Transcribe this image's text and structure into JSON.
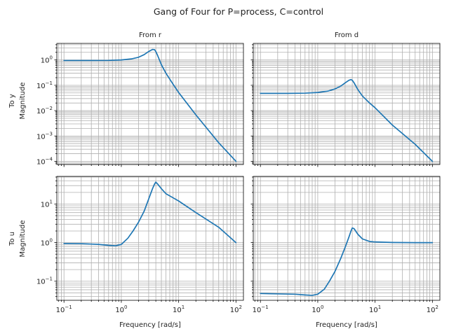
{
  "chart_data": {
    "type": "line",
    "title": "Gang of Four for P=process, C=control",
    "scale": {
      "x": "log",
      "y": "log"
    },
    "grid": {
      "major": true,
      "minor": true
    },
    "line_color": "#1f77b4",
    "col_titles": [
      "From r",
      "From d"
    ],
    "row_labels": [
      [
        "To y",
        "Magnitude"
      ],
      [
        "To u",
        "Magnitude"
      ]
    ],
    "xlabel": "Frequency [rad/s]",
    "xlim": [
      0.075,
      135
    ],
    "x_ticks": [
      {
        "base": "10",
        "exp": "−1",
        "value": 0.1
      },
      {
        "base": "10",
        "exp": "0",
        "value": 1
      },
      {
        "base": "10",
        "exp": "1",
        "value": 10
      },
      {
        "base": "10",
        "exp": "2",
        "value": 100
      }
    ],
    "panels": [
      {
        "id": "y-from-r",
        "ylim": [
          7.5e-05,
          4.5
        ],
        "y_ticks": [
          {
            "base": "10",
            "exp": "−4",
            "value": 0.0001
          },
          {
            "base": "10",
            "exp": "−3",
            "value": 0.001
          },
          {
            "base": "10",
            "exp": "−2",
            "value": 0.01
          },
          {
            "base": "10",
            "exp": "−1",
            "value": 0.1
          },
          {
            "base": "10",
            "exp": "0",
            "value": 1
          }
        ],
        "x": [
          0.1,
          0.3,
          0.6,
          1.0,
          1.5,
          2.0,
          2.5,
          3.0,
          3.5,
          3.8,
          4.0,
          4.3,
          5.0,
          6.0,
          8.0,
          10,
          20,
          50,
          100
        ],
        "y": [
          0.95,
          0.95,
          0.96,
          1.0,
          1.1,
          1.28,
          1.62,
          2.15,
          2.6,
          2.55,
          2.15,
          1.5,
          0.65,
          0.3,
          0.11,
          0.052,
          0.0068,
          0.00054,
          0.0001
        ]
      },
      {
        "id": "y-from-d",
        "ylim": [
          7.5e-05,
          4.5
        ],
        "y_ticks": [],
        "x": [
          0.1,
          0.3,
          0.6,
          1.0,
          1.5,
          2.0,
          2.5,
          3.0,
          3.5,
          3.8,
          4.0,
          4.3,
          5.0,
          6.0,
          8.0,
          10,
          20,
          50,
          100
        ],
        "y": [
          0.048,
          0.048,
          0.049,
          0.052,
          0.059,
          0.072,
          0.092,
          0.124,
          0.158,
          0.168,
          0.158,
          0.125,
          0.068,
          0.038,
          0.02,
          0.013,
          0.0027,
          0.00047,
          0.0001
        ]
      },
      {
        "id": "u-from-r",
        "ylim": [
          0.032,
          52
        ],
        "y_ticks": [
          {
            "base": "10",
            "exp": "−1",
            "value": 0.1
          },
          {
            "base": "10",
            "exp": "0",
            "value": 1
          },
          {
            "base": "10",
            "exp": "1",
            "value": 10
          }
        ],
        "x": [
          0.1,
          0.2,
          0.4,
          0.6,
          0.8,
          1.0,
          1.3,
          1.6,
          2.0,
          2.5,
          3.0,
          3.5,
          3.8,
          4.0,
          4.3,
          5.0,
          6.0,
          8.0,
          10,
          20,
          50,
          100
        ],
        "y": [
          0.95,
          0.94,
          0.9,
          0.85,
          0.83,
          0.9,
          1.3,
          2.0,
          3.4,
          6.5,
          13.5,
          25,
          33,
          37,
          33,
          25,
          18.5,
          14.5,
          12,
          6.0,
          2.5,
          1.0
        ]
      },
      {
        "id": "u-from-d",
        "ylim": [
          0.032,
          52
        ],
        "y_ticks": [],
        "x": [
          0.1,
          0.2,
          0.4,
          0.6,
          0.8,
          1.0,
          1.3,
          1.6,
          2.0,
          2.5,
          3.0,
          3.5,
          3.8,
          4.0,
          4.3,
          5.0,
          6.0,
          8.0,
          10,
          20,
          50,
          100
        ],
        "y": [
          0.048,
          0.047,
          0.046,
          0.044,
          0.043,
          0.046,
          0.062,
          0.1,
          0.18,
          0.38,
          0.75,
          1.4,
          2.0,
          2.4,
          2.3,
          1.65,
          1.25,
          1.07,
          1.04,
          1.01,
          1.0,
          1.0
        ]
      }
    ]
  }
}
